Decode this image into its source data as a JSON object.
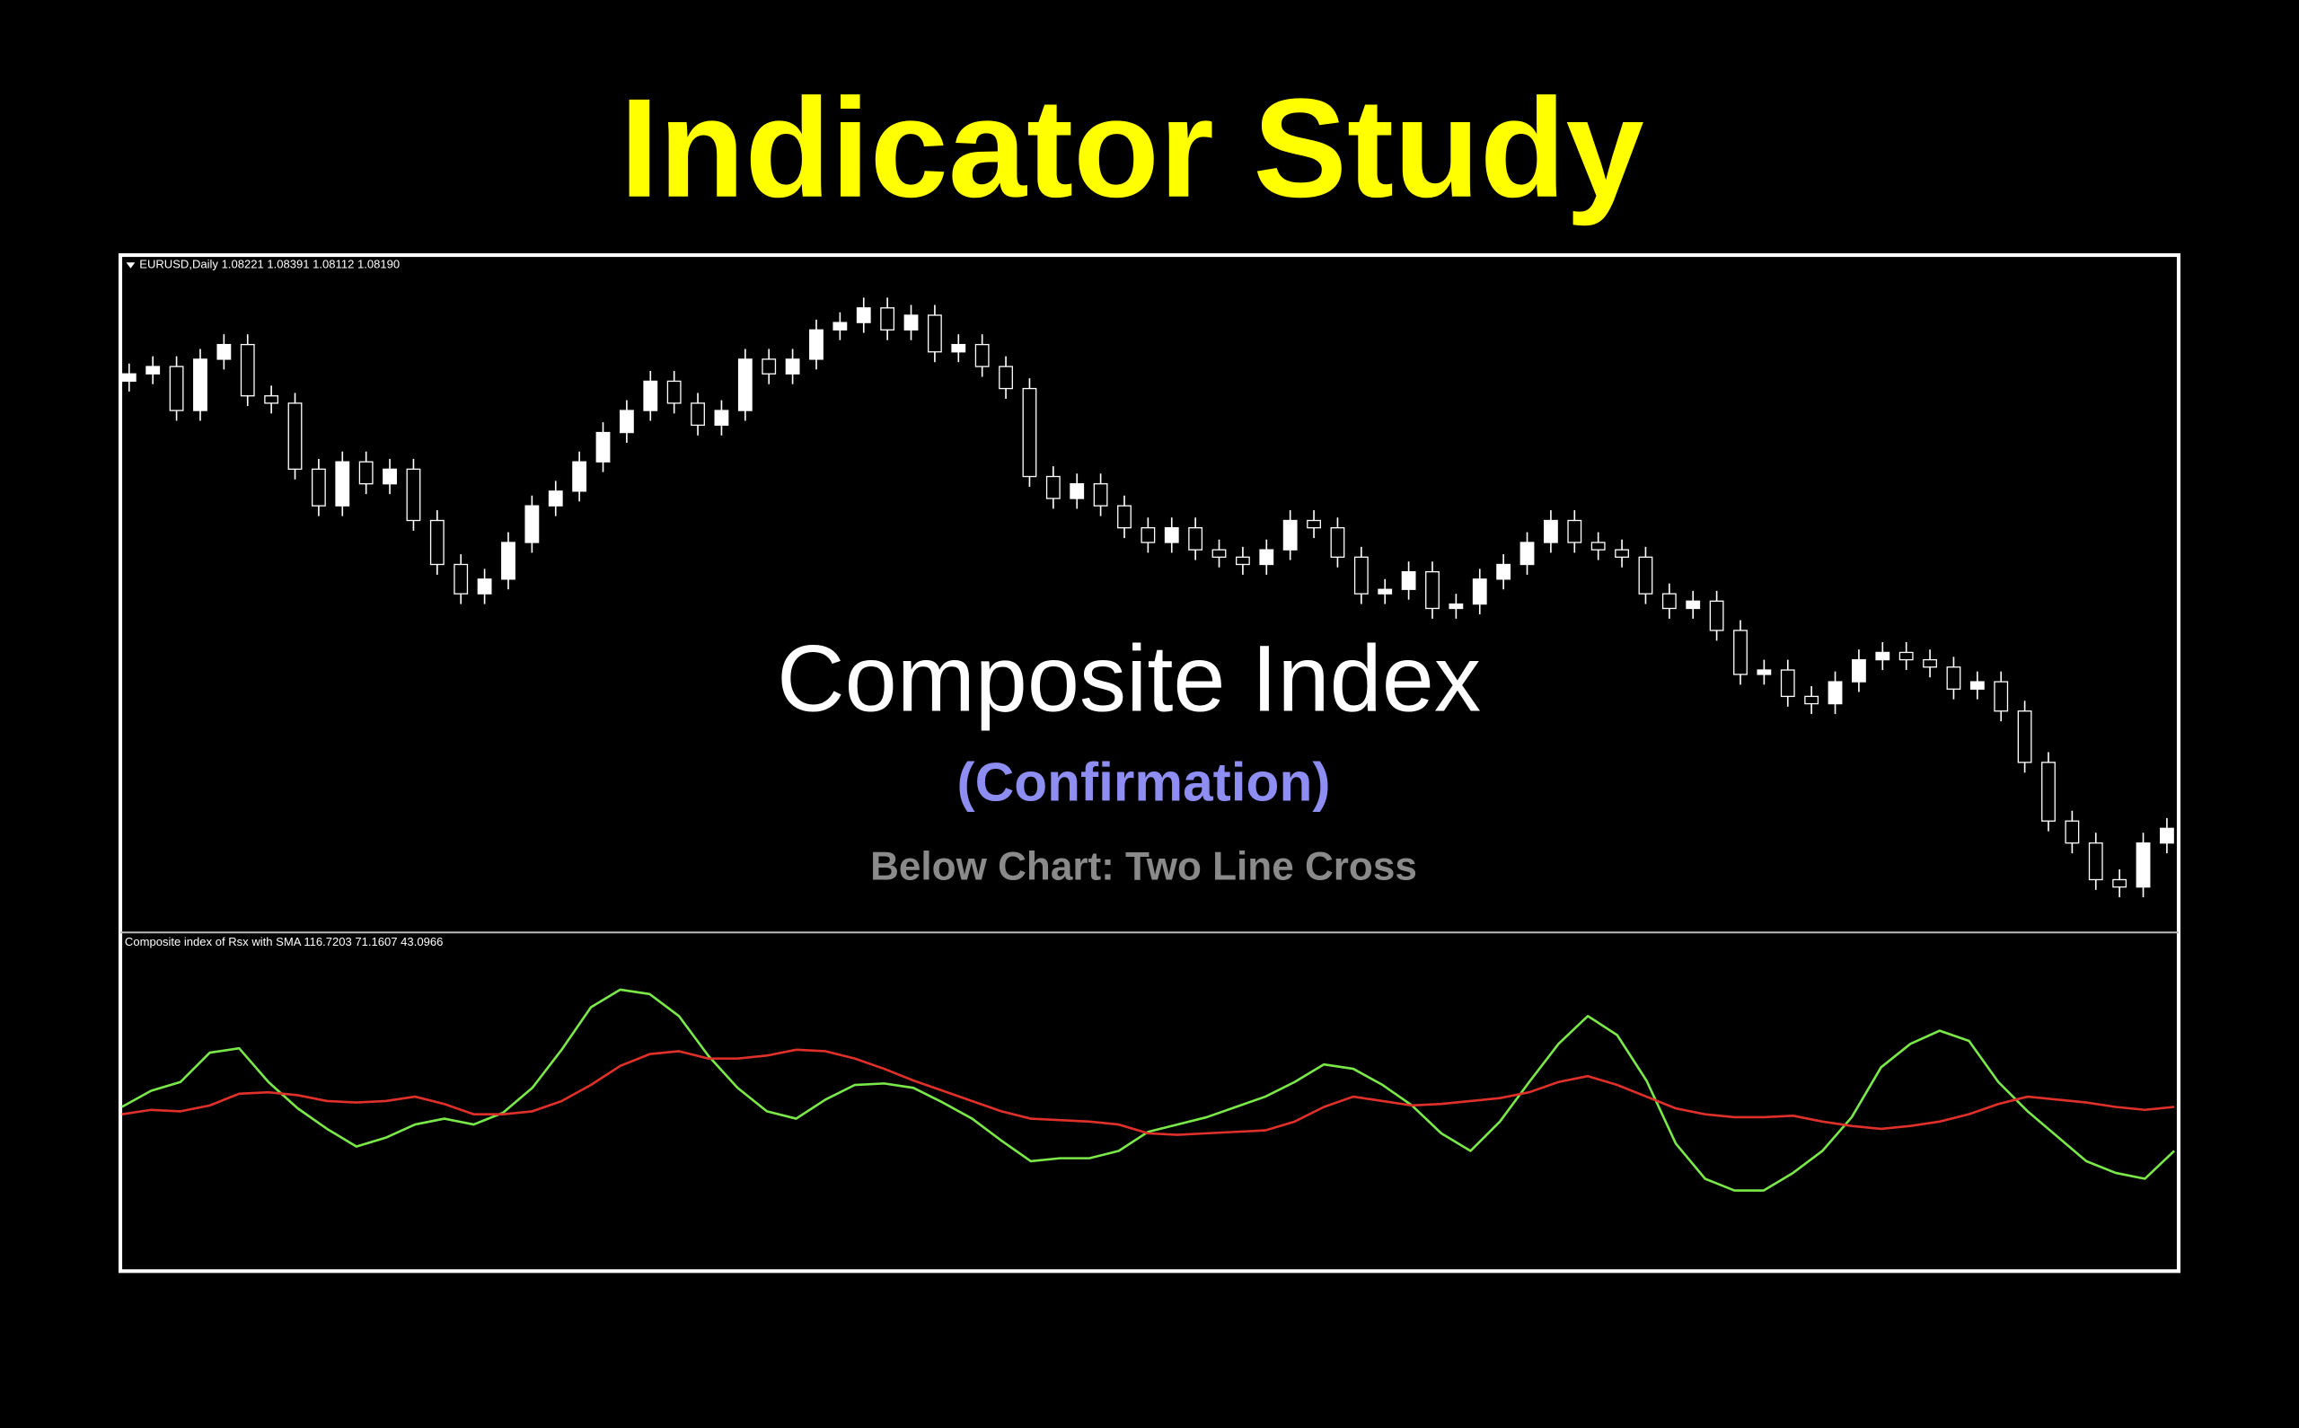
{
  "title": "Indicator Study",
  "chart_data": [
    {
      "type": "candlestick",
      "label": "EURUSD,Daily  1.08221 1.08391 1.08112 1.08190",
      "annotations": [
        "Composite Index",
        "(Confirmation)",
        "Below Chart: Two Line Cross"
      ],
      "ylim": [
        0,
        460
      ],
      "up_color": "#ffffff",
      "down_color": "#000000",
      "wick_color": "#ffffff",
      "open": [
        380,
        385,
        390,
        360,
        395,
        405,
        370,
        365,
        320,
        295,
        325,
        310,
        320,
        285,
        255,
        235,
        245,
        270,
        295,
        305,
        325,
        345,
        360,
        380,
        365,
        350,
        360,
        395,
        385,
        395,
        415,
        420,
        430,
        415,
        425,
        400,
        405,
        390,
        375,
        315,
        300,
        310,
        295,
        280,
        270,
        280,
        265,
        260,
        255,
        265,
        285,
        280,
        260,
        235,
        238,
        250,
        225,
        228,
        245,
        255,
        270,
        285,
        270,
        265,
        260,
        235,
        225,
        230,
        210,
        180,
        183,
        165,
        160,
        175,
        190,
        195,
        190,
        185,
        170,
        175,
        155,
        120,
        80,
        65,
        40,
        35,
        65
      ],
      "high": [
        392,
        397,
        397,
        402,
        412,
        412,
        377,
        372,
        327,
        332,
        332,
        327,
        327,
        292,
        262,
        252,
        277,
        302,
        312,
        332,
        352,
        367,
        387,
        387,
        372,
        367,
        402,
        402,
        402,
        422,
        427,
        437,
        437,
        432,
        432,
        412,
        412,
        397,
        382,
        322,
        317,
        317,
        302,
        287,
        287,
        287,
        272,
        267,
        272,
        292,
        292,
        287,
        267,
        245,
        257,
        257,
        235,
        252,
        262,
        277,
        292,
        292,
        277,
        272,
        267,
        242,
        237,
        237,
        217,
        190,
        190,
        172,
        182,
        197,
        202,
        202,
        197,
        192,
        182,
        182,
        162,
        127,
        87,
        72,
        47,
        72,
        82
      ],
      "low": [
        373,
        378,
        353,
        353,
        388,
        363,
        358,
        313,
        288,
        288,
        303,
        303,
        278,
        248,
        228,
        228,
        238,
        263,
        288,
        298,
        318,
        338,
        353,
        358,
        343,
        343,
        353,
        378,
        378,
        388,
        408,
        413,
        408,
        408,
        393,
        393,
        383,
        368,
        308,
        293,
        293,
        288,
        273,
        263,
        263,
        258,
        253,
        248,
        248,
        258,
        273,
        253,
        228,
        228,
        231,
        218,
        218,
        221,
        238,
        248,
        263,
        263,
        258,
        253,
        228,
        218,
        218,
        203,
        173,
        173,
        158,
        153,
        153,
        168,
        183,
        183,
        178,
        163,
        163,
        148,
        113,
        73,
        58,
        33,
        28,
        28,
        58
      ],
      "close": [
        385,
        390,
        360,
        395,
        405,
        370,
        365,
        320,
        295,
        325,
        310,
        320,
        285,
        255,
        235,
        245,
        270,
        295,
        305,
        325,
        345,
        360,
        380,
        365,
        350,
        360,
        395,
        385,
        395,
        415,
        420,
        430,
        415,
        425,
        400,
        405,
        390,
        375,
        315,
        300,
        310,
        295,
        280,
        270,
        280,
        265,
        260,
        255,
        265,
        285,
        280,
        260,
        235,
        238,
        250,
        225,
        228,
        245,
        255,
        270,
        285,
        270,
        265,
        260,
        235,
        225,
        230,
        210,
        180,
        183,
        165,
        160,
        175,
        190,
        195,
        190,
        185,
        170,
        175,
        155,
        120,
        80,
        65,
        40,
        35,
        65,
        75
      ]
    },
    {
      "type": "line",
      "label": "Composite index of Rsx with SMA 116.7203 71.1607 43.0966",
      "ylim": [
        0,
        220
      ],
      "series": [
        {
          "color": "#7be84a",
          "values": [
            105,
            116,
            122,
            142,
            145,
            122,
            104,
            90,
            78,
            84,
            93,
            97,
            93,
            101,
            118,
            144,
            173,
            185,
            182,
            167,
            140,
            118,
            102,
            97,
            110,
            120,
            121,
            118,
            108,
            97,
            82,
            68,
            70,
            70,
            75,
            88,
            93,
            98,
            105,
            112,
            122,
            134,
            131,
            120,
            106,
            87,
            75,
            95,
            122,
            148,
            167,
            154,
            123,
            80,
            56,
            48,
            48,
            60,
            75,
            98,
            132,
            148,
            157,
            150,
            122,
            102,
            85,
            68,
            60,
            56,
            75
          ]
        },
        {
          "color": "#e0302a",
          "values": [
            100,
            103,
            102,
            106,
            114,
            115,
            113,
            109,
            108,
            109,
            112,
            107,
            100,
            100,
            102,
            109,
            120,
            133,
            141,
            143,
            138,
            138,
            140,
            144,
            143,
            138,
            131,
            123,
            116,
            109,
            102,
            97,
            96,
            95,
            93,
            87,
            86,
            87,
            88,
            89,
            95,
            105,
            112,
            109,
            106,
            107,
            109,
            111,
            115,
            122,
            126,
            120,
            112,
            104,
            100,
            98,
            98,
            99,
            95,
            92,
            90,
            92,
            95,
            100,
            107,
            112,
            110,
            108,
            105,
            103,
            105
          ]
        }
      ]
    }
  ]
}
